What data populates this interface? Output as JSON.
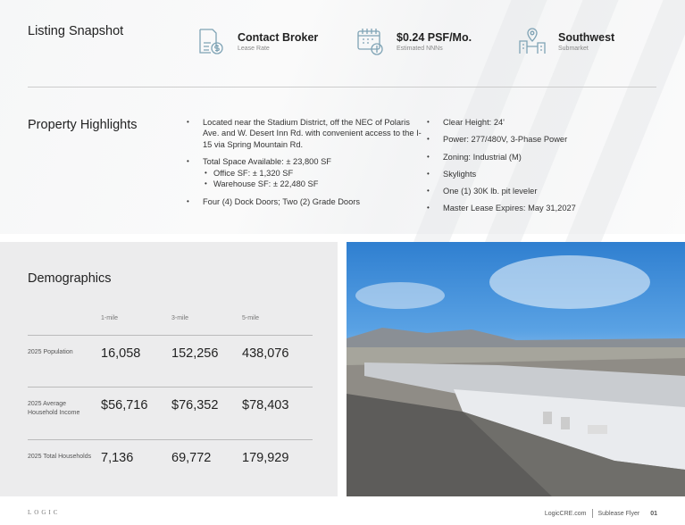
{
  "snapshot": {
    "title": "Listing Snapshot",
    "items": [
      {
        "icon": "document-dollar-icon",
        "value": "Contact Broker",
        "label": "Lease Rate"
      },
      {
        "icon": "calendar-dollar-icon",
        "value": "$0.24 PSF/Mo.",
        "label": "Estimated NNNs"
      },
      {
        "icon": "map-pin-buildings-icon",
        "value": "Southwest",
        "label": "Submarket"
      }
    ]
  },
  "highlights": {
    "title": "Property Highlights",
    "left": [
      "Located near the Stadium District, off the NEC of Polaris Ave. and W. Desert Inn Rd. with convenient access to the I-15 via Spring Mountain Rd.",
      "Total Space Available: ± 23,800 SF",
      "Four (4) Dock Doors; Two (2) Grade Doors"
    ],
    "sub": [
      "Office SF: ± 1,320 SF",
      "Warehouse SF: ± 22,480 SF"
    ],
    "right": [
      "Clear Height: 24'",
      "Power: 277/480V, 3-Phase Power",
      "Zoning: Industrial (M)",
      "Skylights",
      "One (1) 30K lb. pit leveler",
      "Master Lease Expires: May 31,2027"
    ]
  },
  "demographics": {
    "title": "Demographics",
    "columns": [
      "1-mile",
      "3-mile",
      "5-mile"
    ],
    "rows": [
      {
        "label": "2025 Population",
        "values": [
          "16,058",
          "152,256",
          "438,076"
        ]
      },
      {
        "label": "2025 Average Household Income",
        "values": [
          "$56,716",
          "$76,352",
          "$78,403"
        ]
      },
      {
        "label": "2025 Total Households",
        "values": [
          "7,136",
          "69,772",
          "179,929"
        ]
      }
    ]
  },
  "footer": {
    "logo": "LOGIC",
    "site": "LogicCRE.com",
    "doc": "Sublease Flyer",
    "page": "01"
  },
  "colors": {
    "icon": "#7fa3b5",
    "panel": "#ececed"
  }
}
